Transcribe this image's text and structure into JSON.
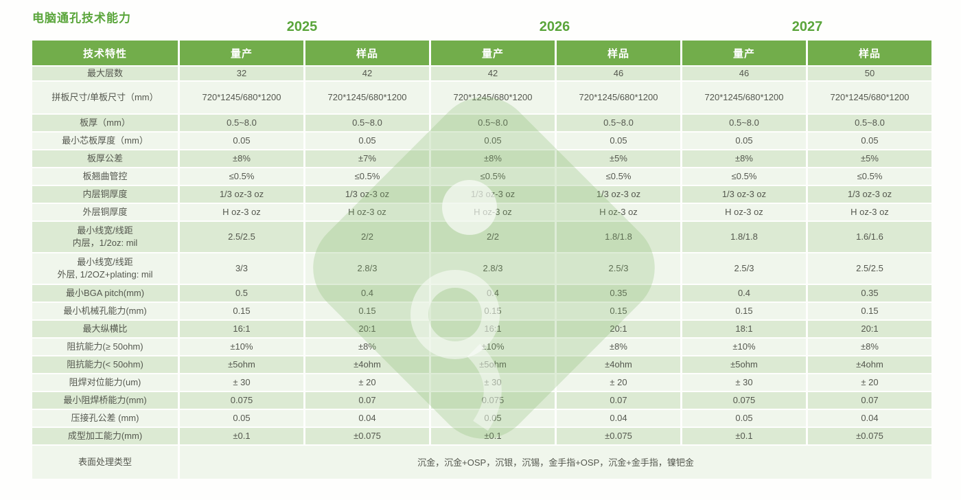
{
  "title": "电脑通孔技术能力",
  "years": [
    "2025",
    "2026",
    "2027"
  ],
  "colors": {
    "green_header": "#72ad4b",
    "green_title": "#5aa53b",
    "row_dark": "#dcead3",
    "row_light": "#f0f6ec",
    "cell_text": "#54574e",
    "watermark_green": "rgba(126,182,104,0.25)"
  },
  "table": {
    "header": {
      "feature": "技术特性",
      "columns": [
        "量产",
        "样品",
        "量产",
        "样品",
        "量产",
        "样品"
      ]
    },
    "rows": [
      {
        "label": "最大层数",
        "values": [
          "32",
          "42",
          "42",
          "46",
          "46",
          "50"
        ]
      },
      {
        "label": "拼板尺寸/单板尺寸（mm）",
        "values": [
          "720*1245/680*1200",
          "720*1245/680*1200",
          "720*1245/680*1200",
          "720*1245/680*1200",
          "720*1245/680*1200",
          "720*1245/680*1200"
        ]
      },
      {
        "label": "板厚（mm）",
        "values": [
          "0.5~8.0",
          "0.5~8.0",
          "0.5~8.0",
          "0.5~8.0",
          "0.5~8.0",
          "0.5~8.0"
        ]
      },
      {
        "label": "最小芯板厚度（mm）",
        "values": [
          "0.05",
          "0.05",
          "0.05",
          "0.05",
          "0.05",
          "0.05"
        ]
      },
      {
        "label": "板厚公差",
        "values": [
          "±8%",
          "±7%",
          "±8%",
          "±5%",
          "±8%",
          "±5%"
        ]
      },
      {
        "label": "板翘曲管控",
        "values": [
          "≤0.5%",
          "≤0.5%",
          "≤0.5%",
          "≤0.5%",
          "≤0.5%",
          "≤0.5%"
        ]
      },
      {
        "label": "内层铜厚度",
        "values": [
          "1/3 oz-3 oz",
          "1/3 oz-3 oz",
          "1/3 oz-3 oz",
          "1/3 oz-3 oz",
          "1/3 oz-3 oz",
          "1/3 oz-3 oz"
        ]
      },
      {
        "label": "外层铜厚度",
        "values": [
          "H oz-3 oz",
          "H oz-3 oz",
          "H oz-3 oz",
          "H oz-3 oz",
          "H oz-3 oz",
          "H oz-3 oz"
        ]
      },
      {
        "label": "最小线宽/线距\n内层，1/2oz: mil",
        "values": [
          "2.5/2.5",
          "2/2",
          "2/2",
          "1.8/1.8",
          "1.8/1.8",
          "1.6/1.6"
        ]
      },
      {
        "label": "最小线宽/线距\n外层, 1/2OZ+plating: mil",
        "values": [
          "3/3",
          "2.8/3",
          "2.8/3",
          "2.5/3",
          "2.5/3",
          "2.5/2.5"
        ]
      },
      {
        "label": "最小BGA pitch(mm)",
        "values": [
          "0.5",
          "0.4",
          "0.4",
          "0.35",
          "0.4",
          "0.35"
        ]
      },
      {
        "label": "最小机械孔能力(mm)",
        "values": [
          "0.15",
          "0.15",
          "0.15",
          "0.15",
          "0.15",
          "0.15"
        ]
      },
      {
        "label": "最大纵横比",
        "values": [
          "16:1",
          "20:1",
          "16:1",
          "20:1",
          "18:1",
          "20:1"
        ]
      },
      {
        "label": "阻抗能力(≥ 50ohm)",
        "values": [
          "±10%",
          "±8%",
          "±10%",
          "±8%",
          "±10%",
          "±8%"
        ]
      },
      {
        "label": "阻抗能力(< 50ohm)",
        "values": [
          "±5ohm",
          "±4ohm",
          "±5ohm",
          "±4ohm",
          "±5ohm",
          "±4ohm"
        ]
      },
      {
        "label": "阻焊对位能力(um)",
        "values": [
          "± 30",
          "± 20",
          "± 30",
          "± 20",
          "± 30",
          "± 20"
        ]
      },
      {
        "label": "最小阻焊桥能力(mm)",
        "values": [
          "0.075",
          "0.07",
          "0.075",
          "0.07",
          "0.075",
          "0.07"
        ]
      },
      {
        "label": "压接孔公差 (mm)",
        "values": [
          "0.05",
          "0.04",
          "0.05",
          "0.04",
          "0.05",
          "0.04"
        ]
      },
      {
        "label": "成型加工能力(mm)",
        "values": [
          "±0.1",
          "±0.075",
          "±0.1",
          "±0.075",
          "±0.1",
          "±0.075"
        ]
      }
    ],
    "surface": {
      "label": "表面处理类型",
      "value": "沉金，沉金+OSP，沉银，沉锡，金手指+OSP，沉金+金手指，镍钯金"
    }
  }
}
